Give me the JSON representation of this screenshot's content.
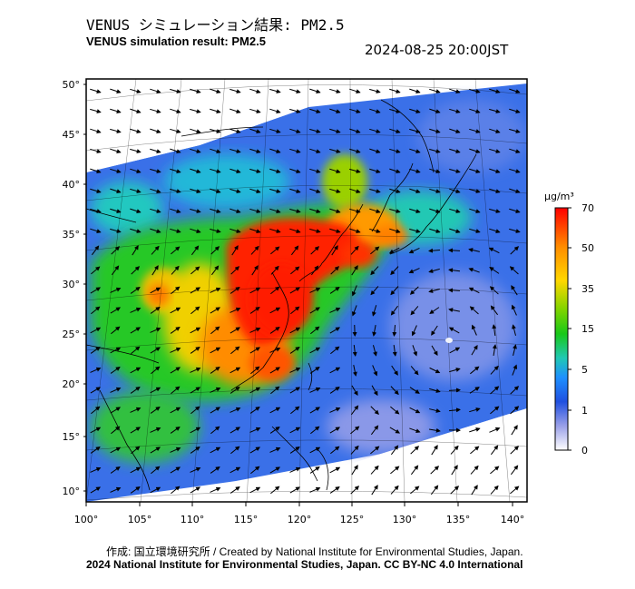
{
  "header": {
    "title_jp": "VENUS シミュレーション結果: PM2.5",
    "title_en": "VENUS simulation result: PM2.5",
    "timestamp": "2024-08-25 20:00JST"
  },
  "map": {
    "region": "East Asia",
    "lat_labels": [
      "50°",
      "45°",
      "40°",
      "35°",
      "30°",
      "25°",
      "20°",
      "15°",
      "10°"
    ],
    "lon_labels": [
      "100°",
      "105°",
      "110°",
      "115°",
      "120°",
      "125°",
      "130°",
      "135°",
      "140°"
    ],
    "wind_vectors_shown": true,
    "features": [
      "coastlines",
      "country-borders",
      "lat-lon-grid",
      "wind-arrows",
      "typhoon-vortex"
    ]
  },
  "colorbar": {
    "unit": "μg/m³",
    "ticks": [
      "70",
      "50",
      "35",
      "15",
      "5",
      "1",
      "0"
    ],
    "colors": [
      "#ff0000",
      "#ff8c00",
      "#ffd700",
      "#7fd400",
      "#18c818",
      "#20c8b4",
      "#1e90ff",
      "#2050e0",
      "#5a6ad8",
      "#9aa0e8",
      "#ffffff"
    ]
  },
  "footer": {
    "credit_line": "作成: 国立環境研究所 / Created by National Institute for Environmental Studies, Japan.",
    "license_line": "2024 National Institute for Environmental Studies, Japan. CC BY-NC 4.0 International"
  }
}
